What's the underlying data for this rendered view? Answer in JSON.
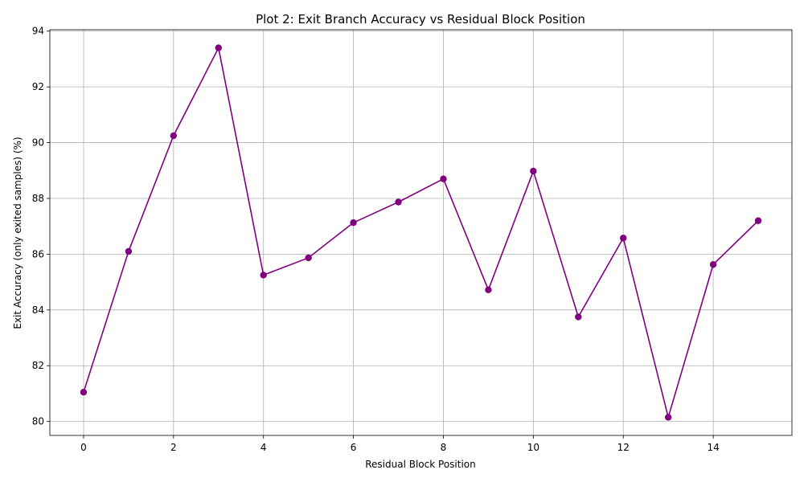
{
  "chart_data": {
    "type": "line",
    "title": "Plot 2: Exit Branch Accuracy vs Residual Block Position",
    "xlabel": "Residual Block Position",
    "ylabel": "Exit Accuracy (only exited samples) (%)",
    "xlim": [
      -0.75,
      15.75
    ],
    "ylim": [
      79.5,
      94.05
    ],
    "xticks": [
      0,
      2,
      4,
      6,
      8,
      10,
      12,
      14
    ],
    "yticks": [
      80,
      82,
      84,
      86,
      88,
      90,
      92,
      94
    ],
    "grid": true,
    "marker": "circle",
    "line_color": "#800080",
    "series": [
      {
        "x": [
          0,
          1,
          2,
          3,
          4,
          5,
          6,
          7,
          8,
          9,
          10,
          11,
          12,
          13,
          14,
          15
        ],
        "values": [
          81.05,
          86.1,
          90.25,
          93.4,
          85.25,
          85.87,
          87.13,
          87.87,
          88.7,
          84.72,
          88.98,
          83.75,
          86.58,
          80.15,
          85.63,
          87.2
        ]
      }
    ]
  }
}
